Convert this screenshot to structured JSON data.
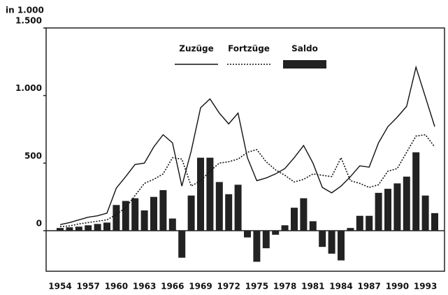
{
  "chart_data": {
    "type": "bar-line",
    "y_unit_label": "in 1.000",
    "categories": [
      "1954",
      null,
      null,
      "1957",
      null,
      null,
      "1960",
      null,
      null,
      "1963",
      null,
      null,
      "1966",
      null,
      null,
      "1969",
      null,
      null,
      "1972",
      null,
      null,
      "1975",
      null,
      null,
      "1978",
      null,
      null,
      "1981",
      null,
      null,
      "1984",
      null,
      null,
      "1987",
      null,
      null,
      "1990",
      null,
      null,
      "1993",
      null
    ],
    "series": [
      {
        "name": "Zuzüge",
        "kind": "line",
        "dash": "solid",
        "color": "#111111",
        "values": [
          45,
          60,
          80,
          100,
          110,
          130,
          315,
          400,
          490,
          500,
          620,
          710,
          650,
          330,
          590,
          910,
          975,
          870,
          790,
          870,
          540,
          370,
          390,
          420,
          460,
          540,
          630,
          500,
          320,
          280,
          330,
          400,
          480,
          470,
          650,
          770,
          840,
          920,
          1210,
          990,
          770
        ]
      },
      {
        "name": "Fortzüge",
        "kind": "line",
        "dash": "dotted",
        "color": "#111111",
        "values": [
          30,
          35,
          50,
          60,
          70,
          80,
          120,
          170,
          260,
          350,
          380,
          420,
          540,
          530,
          330,
          370,
          440,
          500,
          510,
          530,
          580,
          600,
          510,
          450,
          410,
          360,
          380,
          420,
          410,
          400,
          540,
          370,
          350,
          320,
          340,
          440,
          460,
          580,
          700,
          710,
          620
        ]
      },
      {
        "name": "Saldo",
        "kind": "bar",
        "color": "#222222",
        "values": [
          20,
          25,
          30,
          40,
          50,
          60,
          190,
          220,
          240,
          150,
          250,
          300,
          90,
          -200,
          260,
          540,
          540,
          360,
          270,
          340,
          -50,
          -230,
          -130,
          -30,
          40,
          170,
          240,
          70,
          -120,
          -170,
          -220,
          20,
          110,
          110,
          280,
          310,
          350,
          400,
          580,
          260,
          130
        ]
      }
    ],
    "ylim": [
      -300,
      1500
    ],
    "yticks": [
      0,
      500,
      {
        "value": 1000,
        "label": "1.000"
      },
      {
        "value": 1500,
        "label": "1.500"
      }
    ]
  }
}
